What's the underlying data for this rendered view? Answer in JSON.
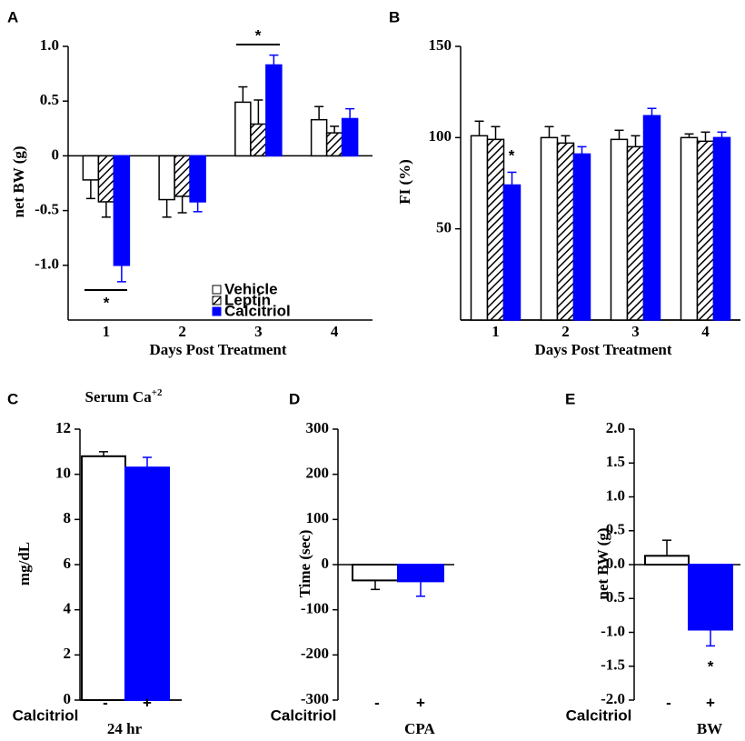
{
  "chart_data": [
    {
      "type": "bar",
      "panel_label": "A",
      "ylabel": "net BW (g)",
      "xlabel": "Days Post Treatment",
      "categories": [
        "1",
        "2",
        "3",
        "4"
      ],
      "series": [
        {
          "name": "Vehicle",
          "color": "#ffffff",
          "values": [
            -0.22,
            -0.4,
            0.49,
            0.33
          ],
          "errors": [
            0.17,
            0.16,
            0.14,
            0.12
          ]
        },
        {
          "name": "Leptin",
          "color": "#ffffff",
          "pattern": "diagonal",
          "values": [
            -0.42,
            -0.37,
            0.29,
            0.21
          ],
          "errors": [
            0.14,
            0.15,
            0.22,
            0.06
          ]
        },
        {
          "name": "Calcitriol",
          "color": "#0000ff",
          "values": [
            -1.0,
            -0.42,
            0.83,
            0.34
          ],
          "errors": [
            0.15,
            0.09,
            0.09,
            0.09
          ]
        }
      ],
      "ylim": [
        -1.5,
        1.0
      ],
      "yticks": [
        {
          "value": 1,
          "label": "1.0"
        },
        0.5,
        0,
        -0.5,
        {
          "value": -1,
          "label": "-1.0"
        }
      ],
      "legend": "lower center",
      "annotations": [
        "*",
        "*"
      ]
    },
    {
      "type": "bar",
      "panel_label": "B",
      "ylabel": "FI (%)",
      "xlabel": "Days Post Treatment",
      "categories": [
        "1",
        "2",
        "3",
        "4"
      ],
      "series": [
        {
          "name": "Vehicle",
          "color": "#ffffff",
          "values": [
            101,
            100,
            99,
            100
          ],
          "errors": [
            8,
            6,
            5,
            2
          ]
        },
        {
          "name": "Leptin",
          "color": "#ffffff",
          "pattern": "diagonal",
          "values": [
            99,
            97,
            95,
            98
          ],
          "errors": [
            7,
            4,
            6,
            5
          ]
        },
        {
          "name": "Calcitriol",
          "color": "#0000ff",
          "values": [
            74,
            91,
            112,
            100
          ],
          "errors": [
            7,
            4,
            4,
            3
          ]
        }
      ],
      "ylim": [
        0,
        150
      ],
      "yticks": [
        50,
        100,
        150
      ],
      "annotations": [
        "*"
      ]
    },
    {
      "type": "bar",
      "panel_label": "C",
      "title": "Serum Ca",
      "title_superscript": "+2",
      "ylabel": "mg/dL",
      "row_label": "Calcitriol",
      "xlabel": "24 hr",
      "categories": [
        "-",
        "+"
      ],
      "values": [
        10.8,
        10.3
      ],
      "errors": [
        0.2,
        0.45
      ],
      "colors": [
        "#ffffff",
        "#0000ff"
      ],
      "ylim": [
        0,
        12
      ],
      "yticks": [
        0,
        2,
        4,
        6,
        8,
        10,
        12
      ]
    },
    {
      "type": "bar",
      "panel_label": "D",
      "ylabel": "Time (sec)",
      "row_label": "Calcitriol",
      "xlabel": "CPA",
      "categories": [
        "-",
        "+"
      ],
      "values": [
        -35,
        -37
      ],
      "errors": [
        20,
        33
      ],
      "colors": [
        "#ffffff",
        "#0000ff"
      ],
      "ylim": [
        -300,
        300
      ],
      "yticks": [
        -300,
        -200,
        -100,
        0,
        100,
        200,
        300
      ]
    },
    {
      "type": "bar",
      "panel_label": "E",
      "ylabel": "net BW (g)",
      "row_label": "Calcitriol",
      "xlabel": "BW",
      "categories": [
        "-",
        "+"
      ],
      "values": [
        0.13,
        -0.96
      ],
      "errors": [
        0.23,
        0.24
      ],
      "colors": [
        "#ffffff",
        "#0000ff"
      ],
      "ylim": [
        -2,
        2
      ],
      "yticks": [
        {
          "value": -2,
          "label": "-2.0"
        },
        {
          "value": -1.5,
          "label": "-1.5"
        },
        {
          "value": -1,
          "label": "-1.0"
        },
        {
          "value": -0.5,
          "label": "-0.5"
        },
        {
          "value": 0,
          "label": "0.0"
        },
        {
          "value": 0.5,
          "label": "0.5"
        },
        {
          "value": 1,
          "label": "1.0"
        },
        {
          "value": 1.5,
          "label": "1.5"
        },
        {
          "value": 2,
          "label": "2.0"
        }
      ],
      "annotations": [
        "*"
      ]
    }
  ]
}
